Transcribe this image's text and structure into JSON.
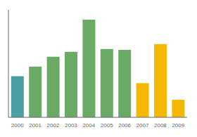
{
  "chart_data": {
    "type": "bar",
    "categories": [
      "2000",
      "2001",
      "2002",
      "2003",
      "2004",
      "2005",
      "2006",
      "2007",
      "2008",
      "2009"
    ],
    "values": [
      42,
      52,
      62,
      67,
      100,
      70,
      69,
      35,
      75,
      18
    ],
    "colors": [
      "#4a9fa5",
      "#6aaa64",
      "#6aaa64",
      "#6aaa64",
      "#6aaa64",
      "#6aaa64",
      "#6aaa64",
      "#f5b800",
      "#f5b800",
      "#f5b800"
    ],
    "ylim": [
      0,
      110
    ],
    "grid": false,
    "tick_labels": "x"
  }
}
